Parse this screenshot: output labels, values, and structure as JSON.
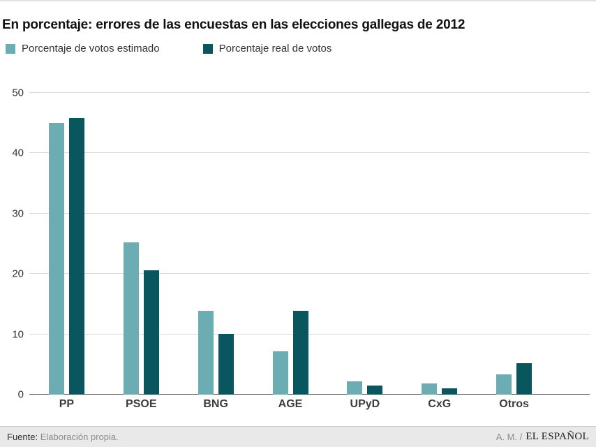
{
  "header": {
    "title": "En porcentaje: errores de las encuestas en las elecciones gallegas de 2012"
  },
  "legend": {
    "items": [
      {
        "label": "Porcentaje de votos estimado",
        "color": "#6badb2",
        "icon": "square-swatch-icon"
      },
      {
        "label": "Porcentaje real de votos",
        "color": "#0a565e",
        "icon": "square-swatch-icon"
      }
    ]
  },
  "chart_data": {
    "type": "bar",
    "title": "En porcentaje: errores de las encuestas en las elecciones gallegas de 2012",
    "categories": [
      "PP",
      "PSOE",
      "BNG",
      "AGE",
      "UPyD",
      "CxG",
      "Otros"
    ],
    "series": [
      {
        "name": "Porcentaje de votos estimado",
        "color": "#6badb2",
        "values": [
          45.0,
          25.2,
          13.9,
          7.2,
          2.2,
          1.9,
          3.4
        ]
      },
      {
        "name": "Porcentaje real de votos",
        "color": "#0a565e",
        "values": [
          45.8,
          20.6,
          10.1,
          13.9,
          1.5,
          1.0,
          5.2
        ]
      }
    ],
    "xlabel": "",
    "ylabel": "",
    "ylim": [
      0,
      50
    ],
    "yticks": [
      0,
      10,
      20,
      30,
      40,
      50
    ],
    "grid": true,
    "legend_position": "top-left"
  },
  "footer": {
    "source_label": "Fuente:",
    "source_text": "Elaboración propia.",
    "credit": "A. M. /",
    "brand": "EL ESPAÑOL"
  }
}
